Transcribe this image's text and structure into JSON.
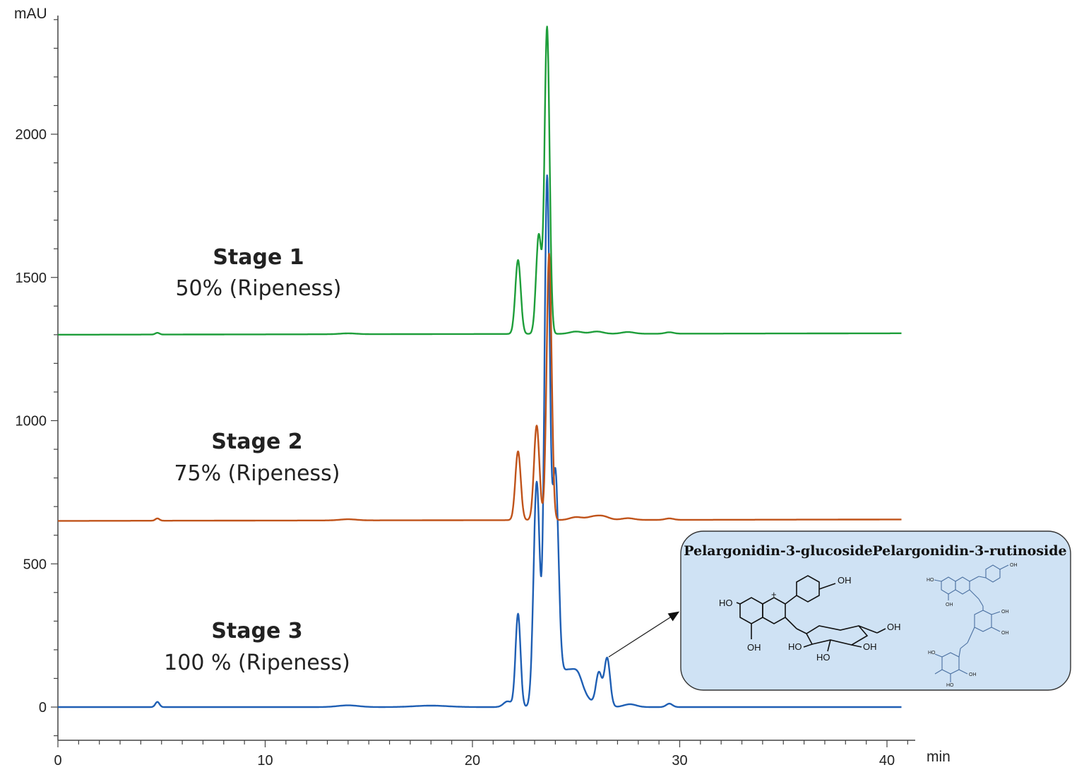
{
  "chart_data": {
    "type": "line",
    "xlabel": "min",
    "ylabel": "mAU",
    "xlim": [
      0,
      41
    ],
    "ylim": [
      -110,
      2450
    ],
    "x_ticks": [
      "0",
      "10",
      "20",
      "30",
      "40"
    ],
    "y_ticks": [
      "0",
      "500",
      "1000",
      "1500",
      "2000"
    ],
    "series": [
      {
        "name": "Stage 1",
        "subtitle": "50% (Ripeness)",
        "color": "#1e9e3a",
        "baseline": [
          1300,
          1305
        ],
        "peaks": [
          [
            4.8,
            6,
            0.1
          ],
          [
            14.0,
            3,
            0.4
          ],
          [
            22.2,
            258,
            0.13
          ],
          [
            23.2,
            345,
            0.13
          ],
          [
            23.6,
            1070,
            0.12
          ],
          [
            25.0,
            8,
            0.3
          ],
          [
            26.0,
            8,
            0.3
          ],
          [
            27.5,
            6,
            0.3
          ],
          [
            29.5,
            5,
            0.2
          ]
        ]
      },
      {
        "name": "Stage 2",
        "subtitle": "75% (Ripeness)",
        "color": "#c0531a",
        "baseline": [
          650,
          655
        ],
        "peaks": [
          [
            4.8,
            8,
            0.1
          ],
          [
            14.0,
            4,
            0.4
          ],
          [
            22.2,
            240,
            0.13
          ],
          [
            23.1,
            330,
            0.13
          ],
          [
            23.7,
            930,
            0.12
          ],
          [
            25.0,
            10,
            0.3
          ],
          [
            25.8,
            10,
            0.3
          ],
          [
            26.3,
            12,
            0.3
          ],
          [
            27.5,
            6,
            0.3
          ],
          [
            29.5,
            5,
            0.2
          ]
        ]
      },
      {
        "name": "Stage 3",
        "subtitle": "100 % (Ripeness)",
        "color": "#1f5fb4",
        "baseline": [
          0,
          0
        ],
        "peaks": [
          [
            4.8,
            18,
            0.1
          ],
          [
            14.0,
            6,
            0.5
          ],
          [
            18.0,
            5,
            0.8
          ],
          [
            21.7,
            20,
            0.2
          ],
          [
            22.2,
            325,
            0.12
          ],
          [
            23.1,
            780,
            0.15
          ],
          [
            23.6,
            1800,
            0.13
          ],
          [
            24.0,
            740,
            0.15
          ],
          [
            24.6,
            130,
            0.6
          ],
          [
            25.1,
            30,
            0.2
          ],
          [
            26.1,
            115,
            0.14
          ],
          [
            26.5,
            170,
            0.14
          ],
          [
            27.6,
            10,
            0.3
          ],
          [
            29.5,
            12,
            0.15
          ]
        ]
      }
    ]
  },
  "inset": {
    "compounds": [
      "Pelargonidin-3-glucoside",
      "Pelargonidin-3-rutinoside"
    ],
    "labels": {
      "oh": "OH",
      "ho": "HO",
      "plus": "+"
    },
    "arrow_target_peak_min": 26.5
  }
}
